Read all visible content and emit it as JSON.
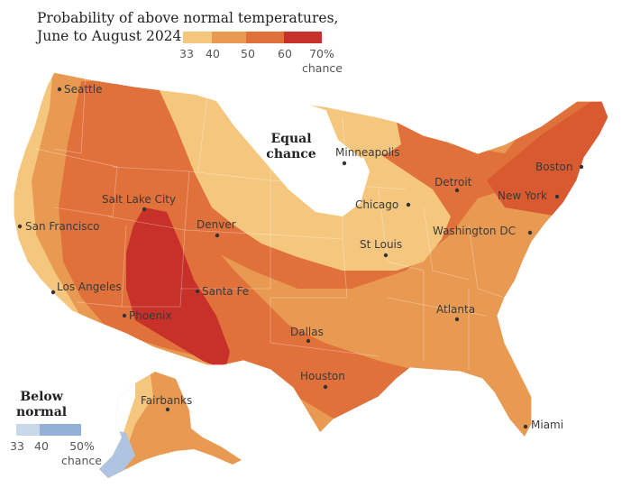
{
  "title": {
    "line1": "Probability of above normal temperatures,",
    "line2": "June to August 2024"
  },
  "above_legend": {
    "ticks": [
      "33",
      "40",
      "50",
      "60",
      "70%"
    ],
    "unit": "chance",
    "colors": [
      "#f5c77e",
      "#e89a52",
      "#e0713a",
      "#d64a2a",
      "#c8302a"
    ]
  },
  "below_legend": {
    "title_line1": "Below",
    "title_line2": "normal",
    "ticks": [
      "33",
      "40",
      "50%"
    ],
    "unit": "chance",
    "colors": [
      "#c9d7ea",
      "#aec4e0",
      "#93b0d6"
    ]
  },
  "region_label": {
    "line1": "Equal",
    "line2": "chance"
  },
  "cities": [
    {
      "name": "Seattle"
    },
    {
      "name": "San Francisco"
    },
    {
      "name": "Los Angeles"
    },
    {
      "name": "Phoenix"
    },
    {
      "name": "Salt Lake City"
    },
    {
      "name": "Denver"
    },
    {
      "name": "Santa Fe"
    },
    {
      "name": "Dallas"
    },
    {
      "name": "Houston"
    },
    {
      "name": "Minneapolis"
    },
    {
      "name": "Chicago"
    },
    {
      "name": "St Louis"
    },
    {
      "name": "Detroit"
    },
    {
      "name": "Washington DC"
    },
    {
      "name": "New York"
    },
    {
      "name": "Boston"
    },
    {
      "name": "Atlanta"
    },
    {
      "name": "Miami"
    },
    {
      "name": "Fairbanks"
    }
  ]
}
